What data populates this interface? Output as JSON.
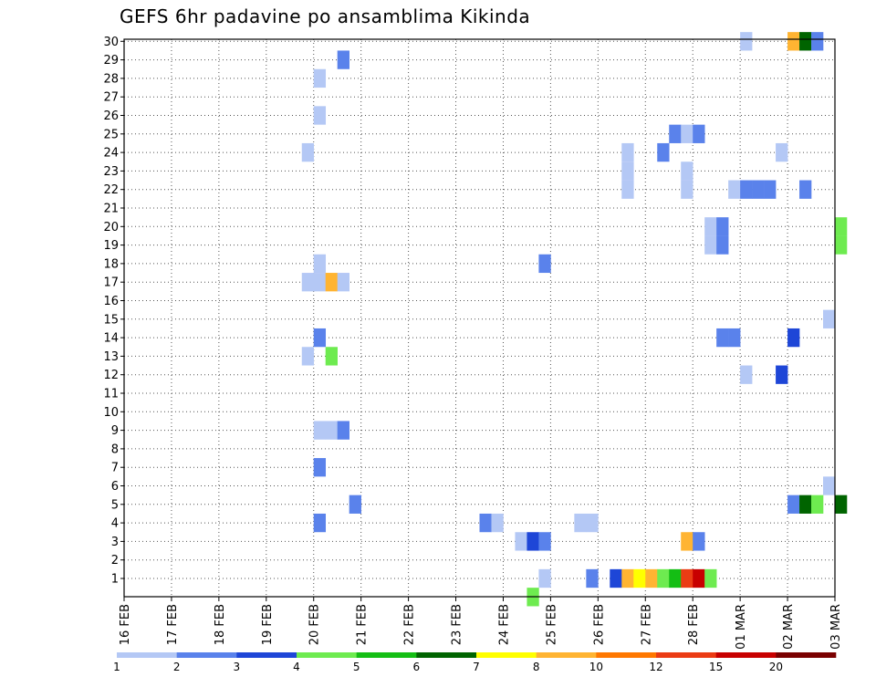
{
  "chart_data": {
    "type": "heatmap",
    "title": "GEFS 6hr padavine po ansamblima Kikinda",
    "xlabel": "",
    "ylabel": "",
    "x_ticks": [
      "16 FEB",
      "17 FEB",
      "18 FEB",
      "19 FEB",
      "20 FEB",
      "21 FEB",
      "22 FEB",
      "23 FEB",
      "24 FEB",
      "25 FEB",
      "26 FEB",
      "27 FEB",
      "28 FEB",
      "01 MAR",
      "02 MAR",
      "03 MAR"
    ],
    "y_ticks": [
      "1",
      "2",
      "3",
      "4",
      "5",
      "6",
      "7",
      "8",
      "9",
      "10",
      "11",
      "12",
      "13",
      "14",
      "15",
      "16",
      "17",
      "18",
      "19",
      "20",
      "21",
      "22",
      "23",
      "24",
      "25",
      "26",
      "27",
      "28",
      "29",
      "30"
    ],
    "xlim": [
      "16 FEB",
      "03 MAR"
    ],
    "ylim": [
      1,
      30
    ],
    "grid": true,
    "time_step_hours": 6,
    "colorbar": {
      "position": "bottom",
      "labels": [
        "1",
        "2",
        "3",
        "4",
        "5",
        "6",
        "7",
        "8",
        "10",
        "12",
        "15",
        "20"
      ],
      "colors": [
        "#b4c8f5",
        "#5a82eb",
        "#1e46d7",
        "#6eeb50",
        "#14be14",
        "#006400",
        "#ffff00",
        "#ffb432",
        "#ff7800",
        "#eb3c14",
        "#c80000",
        "#7a0000"
      ]
    },
    "cells": [
      {
        "member": 30,
        "time": "01 MAR 00Z",
        "value": 1.5
      },
      {
        "member": 30,
        "time": "02 MAR 00Z",
        "value": 8.5
      },
      {
        "member": 30,
        "time": "02 MAR 06Z",
        "value": 6.5
      },
      {
        "member": 30,
        "time": "02 MAR 12Z",
        "value": 2.5
      },
      {
        "member": 29,
        "time": "20 FEB 12Z",
        "value": 2.5
      },
      {
        "member": 28,
        "time": "20 FEB 00Z",
        "value": 1.5
      },
      {
        "member": 26,
        "time": "20 FEB 00Z",
        "value": 1.5
      },
      {
        "member": 25,
        "time": "27 FEB 12Z",
        "value": 2.5
      },
      {
        "member": 25,
        "time": "27 FEB 18Z",
        "value": 1.5
      },
      {
        "member": 25,
        "time": "28 FEB 00Z",
        "value": 2.5
      },
      {
        "member": 24,
        "time": "19 FEB 18Z",
        "value": 1.5
      },
      {
        "member": 24,
        "time": "26 FEB 12Z",
        "value": 1.5
      },
      {
        "member": 24,
        "time": "27 FEB 06Z",
        "value": 2.5
      },
      {
        "member": 24,
        "time": "01 MAR 18Z",
        "value": 1.5
      },
      {
        "member": 23,
        "time": "26 FEB 12Z",
        "value": 1.5
      },
      {
        "member": 23,
        "time": "27 FEB 18Z",
        "value": 1.5
      },
      {
        "member": 22,
        "time": "26 FEB 12Z",
        "value": 1.5
      },
      {
        "member": 22,
        "time": "27 FEB 18Z",
        "value": 1.5
      },
      {
        "member": 22,
        "time": "28 FEB 18Z",
        "value": 1.5
      },
      {
        "member": 22,
        "time": "01 MAR 00Z",
        "value": 2.5
      },
      {
        "member": 22,
        "time": "01 MAR 06Z",
        "value": 2.5
      },
      {
        "member": 22,
        "time": "01 MAR 12Z",
        "value": 2.5
      },
      {
        "member": 22,
        "time": "02 MAR 06Z",
        "value": 2.5
      },
      {
        "member": 20,
        "time": "28 FEB 06Z",
        "value": 1.5
      },
      {
        "member": 20,
        "time": "28 FEB 12Z",
        "value": 2.5
      },
      {
        "member": 20,
        "time": "03 MAR 00Z",
        "value": 4.5
      },
      {
        "member": 19,
        "time": "28 FEB 06Z",
        "value": 1.5
      },
      {
        "member": 19,
        "time": "28 FEB 12Z",
        "value": 2.5
      },
      {
        "member": 19,
        "time": "03 MAR 00Z",
        "value": 4.5
      },
      {
        "member": 18,
        "time": "20 FEB 00Z",
        "value": 1.5
      },
      {
        "member": 18,
        "time": "24 FEB 18Z",
        "value": 2.5
      },
      {
        "member": 17,
        "time": "19 FEB 18Z",
        "value": 1.5
      },
      {
        "member": 17,
        "time": "20 FEB 00Z",
        "value": 1.5
      },
      {
        "member": 17,
        "time": "20 FEB 06Z",
        "value": 9
      },
      {
        "member": 17,
        "time": "20 FEB 12Z",
        "value": 1.5
      },
      {
        "member": 15,
        "time": "02 MAR 18Z",
        "value": 1.5
      },
      {
        "member": 14,
        "time": "20 FEB 00Z",
        "value": 2.5
      },
      {
        "member": 14,
        "time": "28 FEB 12Z",
        "value": 2.5
      },
      {
        "member": 14,
        "time": "28 FEB 18Z",
        "value": 2.5
      },
      {
        "member": 14,
        "time": "02 MAR 00Z",
        "value": 3.5
      },
      {
        "member": 13,
        "time": "19 FEB 18Z",
        "value": 1.5
      },
      {
        "member": 13,
        "time": "20 FEB 06Z",
        "value": 4.5
      },
      {
        "member": 12,
        "time": "01 MAR 00Z",
        "value": 1.5
      },
      {
        "member": 12,
        "time": "01 MAR 18Z",
        "value": 3.5
      },
      {
        "member": 9,
        "time": "20 FEB 00Z",
        "value": 1.5
      },
      {
        "member": 9,
        "time": "20 FEB 06Z",
        "value": 1.5
      },
      {
        "member": 9,
        "time": "20 FEB 12Z",
        "value": 2.5
      },
      {
        "member": 7,
        "time": "20 FEB 00Z",
        "value": 2.5
      },
      {
        "member": 6,
        "time": "02 MAR 18Z",
        "value": 1.5
      },
      {
        "member": 5,
        "time": "20 FEB 18Z",
        "value": 2.5
      },
      {
        "member": 5,
        "time": "02 MAR 00Z",
        "value": 2.5
      },
      {
        "member": 5,
        "time": "02 MAR 06Z",
        "value": 6.5
      },
      {
        "member": 5,
        "time": "02 MAR 12Z",
        "value": 4.5
      },
      {
        "member": 5,
        "time": "03 MAR 00Z",
        "value": 6.5
      },
      {
        "member": 4,
        "time": "20 FEB 00Z",
        "value": 2.5
      },
      {
        "member": 4,
        "time": "23 FEB 12Z",
        "value": 2.5
      },
      {
        "member": 4,
        "time": "23 FEB 18Z",
        "value": 1.5
      },
      {
        "member": 4,
        "time": "25 FEB 12Z",
        "value": 1.5
      },
      {
        "member": 4,
        "time": "25 FEB 18Z",
        "value": 1.5
      },
      {
        "member": 3,
        "time": "24 FEB 06Z",
        "value": 1.5
      },
      {
        "member": 3,
        "time": "24 FEB 12Z",
        "value": 3.5
      },
      {
        "member": 3,
        "time": "24 FEB 18Z",
        "value": 2.5
      },
      {
        "member": 3,
        "time": "27 FEB 18Z",
        "value": 9
      },
      {
        "member": 3,
        "time": "28 FEB 00Z",
        "value": 2.5
      },
      {
        "member": 1,
        "time": "24 FEB 18Z",
        "value": 1.5
      },
      {
        "member": 1,
        "time": "25 FEB 18Z",
        "value": 2.5
      },
      {
        "member": 1,
        "time": "26 FEB 06Z",
        "value": 3.5
      },
      {
        "member": 1,
        "time": "26 FEB 12Z",
        "value": 9
      },
      {
        "member": 1,
        "time": "26 FEB 18Z",
        "value": 7.5
      },
      {
        "member": 1,
        "time": "27 FEB 00Z",
        "value": 9
      },
      {
        "member": 1,
        "time": "27 FEB 06Z",
        "value": 4.5
      },
      {
        "member": 1,
        "time": "27 FEB 12Z",
        "value": 5.5
      },
      {
        "member": 1,
        "time": "27 FEB 18Z",
        "value": 13
      },
      {
        "member": 1,
        "time": "28 FEB 00Z",
        "value": 17
      },
      {
        "member": 1,
        "time": "28 FEB 06Z",
        "value": 4.5
      },
      {
        "member": 0,
        "time": "24 FEB 12Z",
        "value": 4.5
      }
    ]
  }
}
